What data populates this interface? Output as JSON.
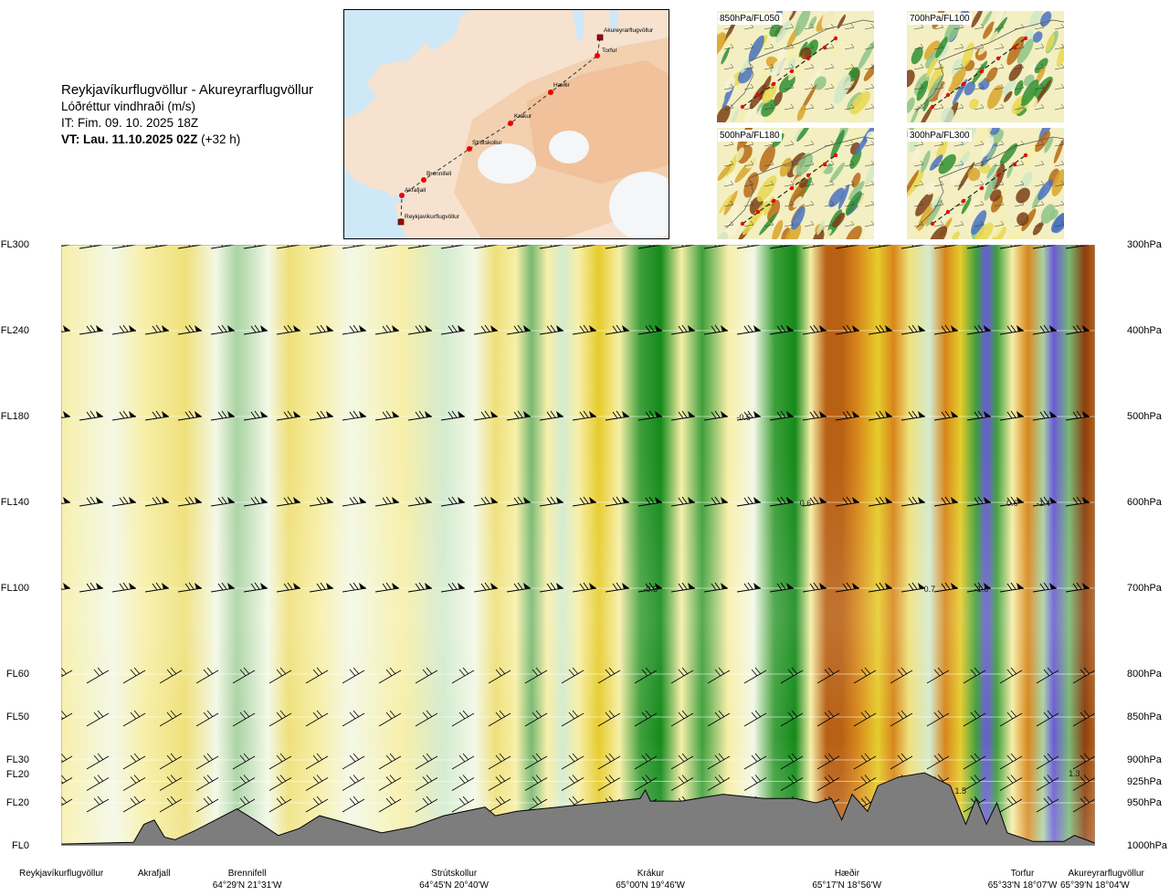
{
  "header": {
    "route": "Reykjavíkurflugvöllur - Akureyrarflugvöllur",
    "parameter": "Lóðréttur vindhraði (m/s)",
    "issue_time": "IT: Fim. 09. 10. 2025 18Z",
    "valid_time_bold": "VT: Lau. 11.10.2025 02Z",
    "valid_time_offset": "(+32 h)"
  },
  "overview_map": {
    "places": [
      {
        "name": "Akureyrarflugvöllur",
        "kind": "airport"
      },
      {
        "name": "Torfur",
        "kind": "point"
      },
      {
        "name": "Hæðir",
        "kind": "point"
      },
      {
        "name": "Krákur",
        "kind": "point"
      },
      {
        "name": "Strútskollur",
        "kind": "point"
      },
      {
        "name": "Brennifell",
        "kind": "point"
      },
      {
        "name": "Akrafjall",
        "kind": "point"
      },
      {
        "name": "Reykjavíkurflugvöllur",
        "kind": "airport"
      }
    ]
  },
  "level_maps": [
    {
      "label": "850hPa/FL050"
    },
    {
      "label": "700hPa/FL100"
    },
    {
      "label": "500hPa/FL180"
    },
    {
      "label": "300hPa/FL300"
    }
  ],
  "chart_data": {
    "type": "heatmap",
    "title": "Reykjavíkurflugvöllur - Akureyrarflugvöllur",
    "variable": "Lóðréttur vindhraði (m/s)",
    "x_axis": "distance along route",
    "y_axis": "pressure level",
    "flight_levels": [
      {
        "fl": "FL300",
        "hpa": "300hPa",
        "p": 300
      },
      {
        "fl": "FL240",
        "hpa": "400hPa",
        "p": 400
      },
      {
        "fl": "FL180",
        "hpa": "500hPa",
        "p": 500
      },
      {
        "fl": "FL140",
        "hpa": "600hPa",
        "p": 600
      },
      {
        "fl": "FL100",
        "hpa": "700hPa",
        "p": 700
      },
      {
        "fl": "FL60",
        "hpa": "800hPa",
        "p": 800
      },
      {
        "fl": "FL50",
        "hpa": "850hPa",
        "p": 850
      },
      {
        "fl": "FL30",
        "hpa": "900hPa",
        "p": 900
      },
      {
        "fl": "FL20",
        "hpa": "925hPa",
        "p": 925
      },
      {
        "fl": "FL20",
        "hpa": "950hPa",
        "p": 950
      },
      {
        "fl": "FL0",
        "hpa": "1000hPa",
        "p": 1000
      }
    ],
    "p_range": [
      300,
      1000
    ],
    "route_range": [
      0,
      100
    ],
    "waypoints": [
      {
        "name": "Reykjavíkurflugvöllur",
        "coord": "",
        "d": 0
      },
      {
        "name": "Akrafjall",
        "coord": "",
        "d": 9
      },
      {
        "name": "Brennifell",
        "coord": "64°29'N 21°31'W",
        "d": 18
      },
      {
        "name": "Strútskollur",
        "coord": "64°45'N 20°40'W",
        "d": 38
      },
      {
        "name": "Krákur",
        "coord": "65°00'N 19°46'W",
        "d": 57
      },
      {
        "name": "Hæðir",
        "coord": "65°17'N 18°56'W",
        "d": 76
      },
      {
        "name": "Torfur",
        "coord": "65°33'N 18°07'W",
        "d": 93
      },
      {
        "name": "Akureyrarflugvöllur",
        "coord": "65°39'N 18°04'W",
        "d": 100
      }
    ],
    "value_labels": [
      {
        "text": "-0.5",
        "d": 66,
        "p": 500
      },
      {
        "text": "0.6",
        "d": 72,
        "p": 600
      },
      {
        "text": "0.6",
        "d": 92,
        "p": 600
      },
      {
        "text": "-1.4",
        "d": 95,
        "p": 600
      },
      {
        "text": "-0.5",
        "d": 57,
        "p": 700
      },
      {
        "text": "0.7",
        "d": 84,
        "p": 700
      },
      {
        "text": "-1.6",
        "d": 89,
        "p": 700
      },
      {
        "text": "1.5",
        "d": 87,
        "p": 935
      },
      {
        "text": "1.3",
        "d": 98,
        "p": 915
      }
    ],
    "color_scale": [
      {
        "v": -1.5,
        "color": "#6a5ad8"
      },
      {
        "v": -1.0,
        "color": "#4b88b0"
      },
      {
        "v": -0.7,
        "color": "#138a1a"
      },
      {
        "v": -0.5,
        "color": "#3f9f3c"
      },
      {
        "v": -0.3,
        "color": "#78b872"
      },
      {
        "v": -0.2,
        "color": "#a9d3a3"
      },
      {
        "v": -0.1,
        "color": "#d3ebcf"
      },
      {
        "v": 0.0,
        "color": "#f3f8e6"
      },
      {
        "v": 0.05,
        "color": "#f7efa8"
      },
      {
        "v": 0.2,
        "color": "#efe07a"
      },
      {
        "v": 0.35,
        "color": "#e6cc2c"
      },
      {
        "v": 0.5,
        "color": "#e0a91c"
      },
      {
        "v": 0.7,
        "color": "#d7861a"
      },
      {
        "v": 1.0,
        "color": "#b86014"
      },
      {
        "v": 1.4,
        "color": "#8a3f10"
      },
      {
        "v": 1.8,
        "color": "#a01818"
      }
    ],
    "columns": [
      {
        "d": 0,
        "w": 0.05
      },
      {
        "d": 5,
        "w": -0.05
      },
      {
        "d": 8,
        "w": 0.03
      },
      {
        "d": 12,
        "w": 0.15
      },
      {
        "d": 15,
        "w": 0.02
      },
      {
        "d": 17,
        "w": -0.2
      },
      {
        "d": 20,
        "w": 0.02
      },
      {
        "d": 22,
        "w": 0.15
      },
      {
        "d": 25,
        "w": 0.05
      },
      {
        "d": 28,
        "w": -0.05
      },
      {
        "d": 33,
        "w": 0.05
      },
      {
        "d": 37,
        "w": -0.15
      },
      {
        "d": 40,
        "w": -0.05
      },
      {
        "d": 42,
        "w": 0.25
      },
      {
        "d": 44,
        "w": 0.05
      },
      {
        "d": 45.5,
        "w": -0.3
      },
      {
        "d": 47,
        "w": 0.05
      },
      {
        "d": 48.5,
        "w": -0.15
      },
      {
        "d": 50,
        "w": 0.05
      },
      {
        "d": 52,
        "w": 0.3
      },
      {
        "d": 54,
        "w": 0.1
      },
      {
        "d": 56,
        "w": -0.4
      },
      {
        "d": 58,
        "w": -0.7
      },
      {
        "d": 60,
        "w": 0.1
      },
      {
        "d": 62,
        "w": -0.5
      },
      {
        "d": 64.5,
        "w": 0.1
      },
      {
        "d": 67,
        "w": 0.02
      },
      {
        "d": 69,
        "w": -0.4
      },
      {
        "d": 71,
        "w": -0.8
      },
      {
        "d": 72.5,
        "w": 0.1
      },
      {
        "d": 74,
        "w": 0.9
      },
      {
        "d": 75.5,
        "w": 1.1
      },
      {
        "d": 77,
        "w": 0.8
      },
      {
        "d": 79,
        "w": 0.4
      },
      {
        "d": 80.5,
        "w": 0.7
      },
      {
        "d": 82,
        "w": 0.2
      },
      {
        "d": 84,
        "w": -0.1
      },
      {
        "d": 85.5,
        "w": 0.8
      },
      {
        "d": 87,
        "w": 0.3
      },
      {
        "d": 88.5,
        "w": -0.6
      },
      {
        "d": 89.5,
        "w": -1.6
      },
      {
        "d": 90.5,
        "w": -0.6
      },
      {
        "d": 92,
        "w": 0.05
      },
      {
        "d": 93.5,
        "w": 0.7
      },
      {
        "d": 95,
        "w": -0.2
      },
      {
        "d": 96,
        "w": -1.4
      },
      {
        "d": 97.5,
        "w": -0.3
      },
      {
        "d": 99,
        "w": 1.3
      },
      {
        "d": 100,
        "w": 0.9
      }
    ],
    "terrain": [
      {
        "d": 0,
        "p": 998
      },
      {
        "d": 7,
        "p": 996
      },
      {
        "d": 8,
        "p": 975
      },
      {
        "d": 9,
        "p": 970
      },
      {
        "d": 10,
        "p": 990
      },
      {
        "d": 11,
        "p": 993
      },
      {
        "d": 13,
        "p": 982
      },
      {
        "d": 17,
        "p": 957
      },
      {
        "d": 19,
        "p": 972
      },
      {
        "d": 21,
        "p": 988
      },
      {
        "d": 23,
        "p": 980
      },
      {
        "d": 25,
        "p": 965
      },
      {
        "d": 28,
        "p": 975
      },
      {
        "d": 31,
        "p": 985
      },
      {
        "d": 34,
        "p": 978
      },
      {
        "d": 37,
        "p": 965
      },
      {
        "d": 39,
        "p": 960
      },
      {
        "d": 41,
        "p": 955
      },
      {
        "d": 42,
        "p": 965
      },
      {
        "d": 44,
        "p": 960
      },
      {
        "d": 48,
        "p": 955
      },
      {
        "d": 52,
        "p": 950
      },
      {
        "d": 56,
        "p": 945
      },
      {
        "d": 56.5,
        "p": 935
      },
      {
        "d": 57,
        "p": 948
      },
      {
        "d": 60,
        "p": 948
      },
      {
        "d": 64,
        "p": 940
      },
      {
        "d": 68,
        "p": 945
      },
      {
        "d": 71,
        "p": 945
      },
      {
        "d": 73,
        "p": 950
      },
      {
        "d": 74.5,
        "p": 945
      },
      {
        "d": 75.5,
        "p": 970
      },
      {
        "d": 76.5,
        "p": 940
      },
      {
        "d": 78,
        "p": 960
      },
      {
        "d": 79,
        "p": 930
      },
      {
        "d": 81,
        "p": 920
      },
      {
        "d": 83.5,
        "p": 915
      },
      {
        "d": 86,
        "p": 930
      },
      {
        "d": 87.5,
        "p": 975
      },
      {
        "d": 88.5,
        "p": 945
      },
      {
        "d": 89.5,
        "p": 975
      },
      {
        "d": 90.5,
        "p": 950
      },
      {
        "d": 91.5,
        "p": 985
      },
      {
        "d": 94,
        "p": 995
      },
      {
        "d": 97,
        "p": 995
      },
      {
        "d": 98,
        "p": 988
      },
      {
        "d": 100,
        "p": 997
      }
    ]
  }
}
